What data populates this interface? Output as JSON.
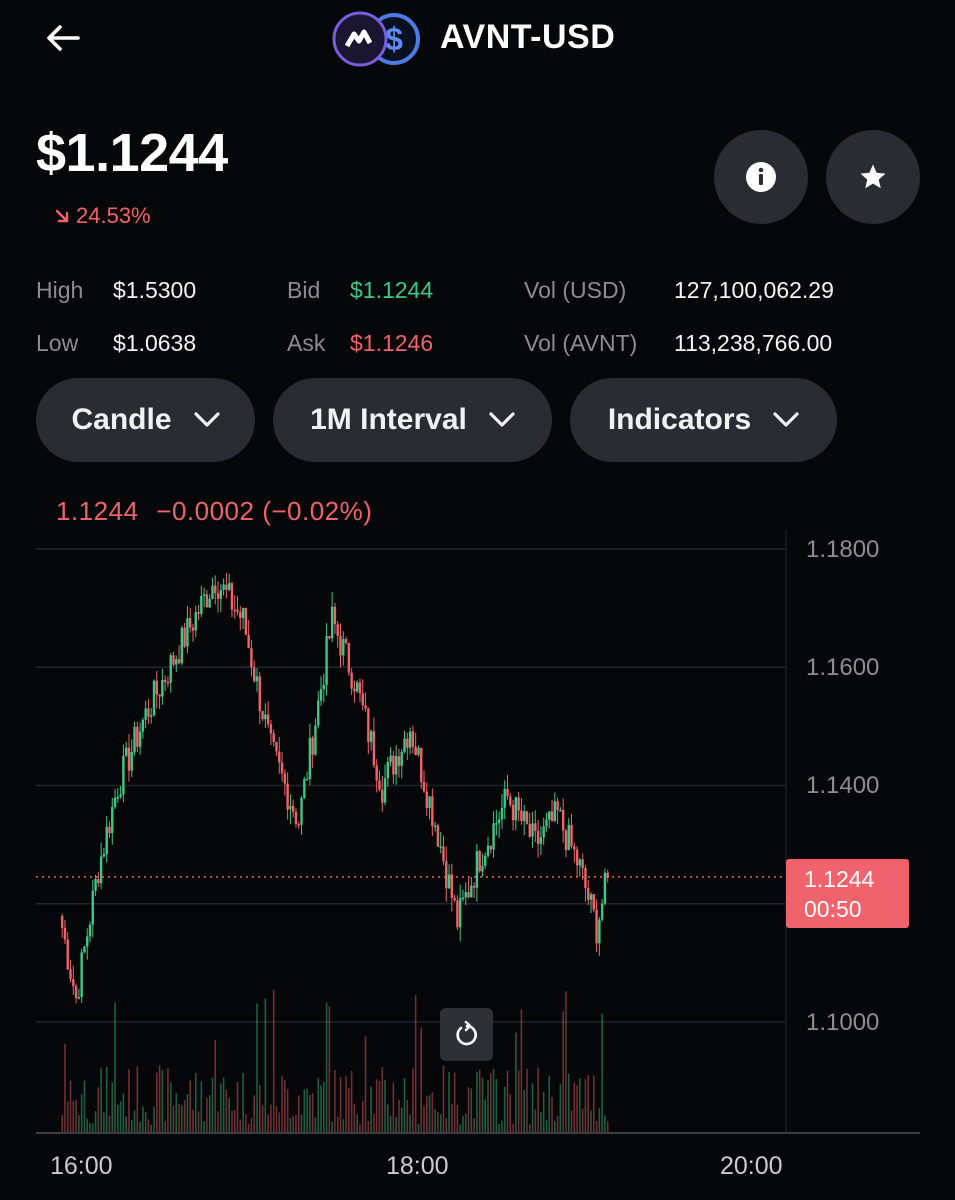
{
  "header": {
    "pair": "AVNT-USD",
    "back_icon": "arrow-left-icon",
    "base_logo_icon": "avantis-logo-icon",
    "quote_logo_icon": "usd-coin-icon"
  },
  "price": {
    "value": "$1.1244",
    "change": "24.53%",
    "change_direction": "down",
    "change_icon": "arrow-down-right-icon"
  },
  "actions": {
    "info_icon": "info-icon",
    "favorite_icon": "star-icon"
  },
  "stats": {
    "high_label": "High",
    "high_value": "$1.5300",
    "low_label": "Low",
    "low_value": "$1.0638",
    "bid_label": "Bid",
    "bid_value": "$1.1244",
    "ask_label": "Ask",
    "ask_value": "$1.1246",
    "vol_usd_label": "Vol (USD)",
    "vol_usd_value": "127,100,062.29",
    "vol_base_label": "Vol (AVNT)",
    "vol_base_value": "113,238,766.00"
  },
  "controls": {
    "chart_type": "Candle",
    "interval": "1M Interval",
    "indicators": "Indicators"
  },
  "chart_header": {
    "price": "1.1244",
    "delta": "−0.0002 (−0.02%)"
  },
  "chart": {
    "y_ticks": [
      "1.1800",
      "1.1600",
      "1.1400",
      "1.1000"
    ],
    "x_ticks": [
      "16:00",
      "18:00",
      "20:00"
    ],
    "current_price_tag": "1.1244",
    "countdown": "00:50",
    "reset_icon": "rotate-icon"
  },
  "colors": {
    "up": "#3cc88a",
    "down": "#f0626c",
    "background": "#060708",
    "pill": "#2a2c31"
  },
  "chart_data": {
    "type": "candlestick",
    "x_start": "15:50",
    "x_end": "20:00",
    "interval": "1m",
    "ylim": [
      1.094,
      1.182
    ],
    "last_price": 1.1244,
    "series_summary": [
      {
        "time": "15:50",
        "close": 1.116
      },
      {
        "time": "15:55",
        "close": 1.104
      },
      {
        "time": "16:03",
        "close": 1.126
      },
      {
        "time": "16:10",
        "close": 1.14
      },
      {
        "time": "16:20",
        "close": 1.152
      },
      {
        "time": "16:35",
        "close": 1.166
      },
      {
        "time": "16:45",
        "close": 1.175
      },
      {
        "time": "16:55",
        "close": 1.168
      },
      {
        "time": "17:05",
        "close": 1.146
      },
      {
        "time": "17:15",
        "close": 1.134
      },
      {
        "time": "17:27",
        "close": 1.168
      },
      {
        "time": "17:35",
        "close": 1.158
      },
      {
        "time": "17:45",
        "close": 1.14
      },
      {
        "time": "17:55",
        "close": 1.15
      },
      {
        "time": "18:05",
        "close": 1.132
      },
      {
        "time": "18:12",
        "close": 1.117
      },
      {
        "time": "18:20",
        "close": 1.128
      },
      {
        "time": "18:30",
        "close": 1.138
      },
      {
        "time": "18:40",
        "close": 1.13
      },
      {
        "time": "18:48",
        "close": 1.135
      },
      {
        "time": "18:56",
        "close": 1.126
      },
      {
        "time": "19:02",
        "close": 1.116
      },
      {
        "time": "19:06",
        "close": 1.1244
      }
    ]
  }
}
